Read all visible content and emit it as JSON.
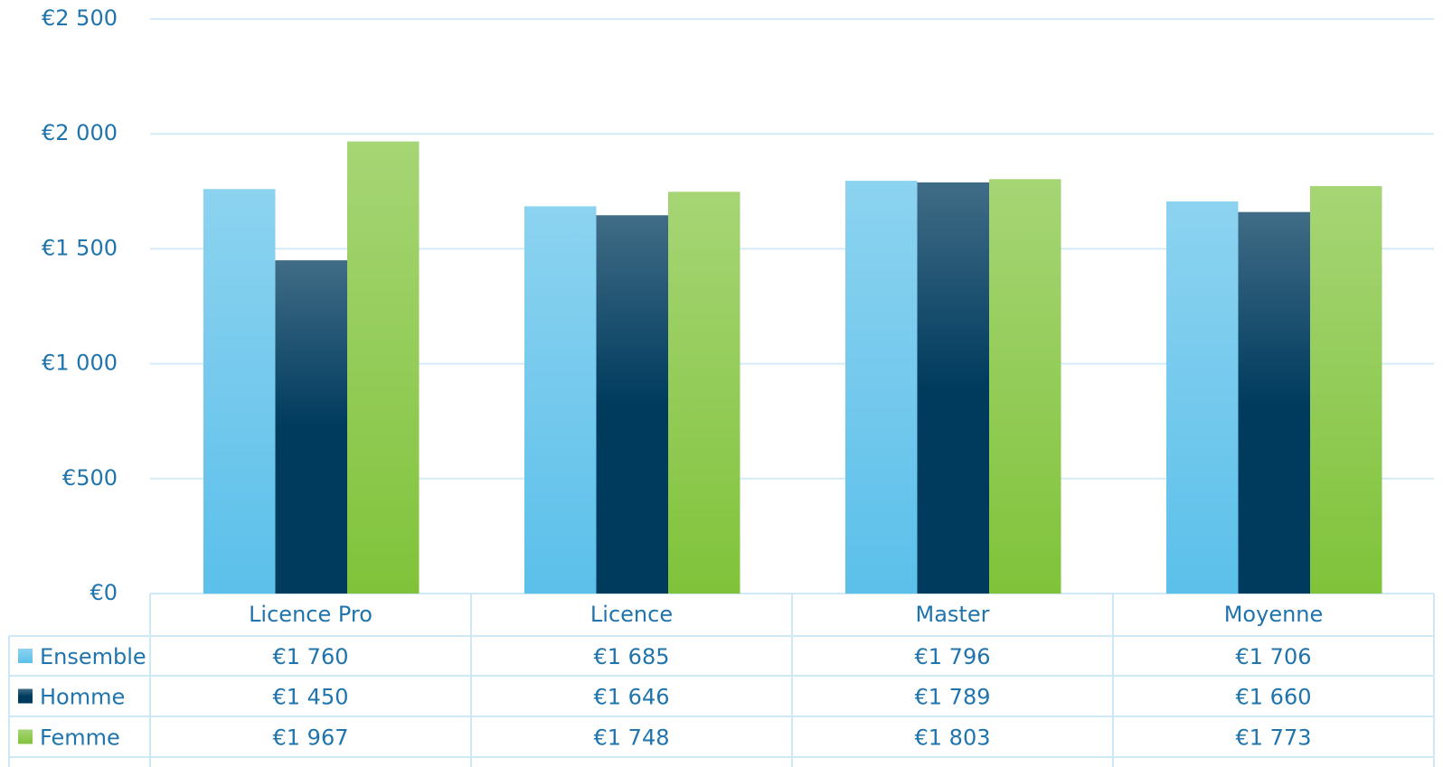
{
  "chart_data": {
    "type": "bar",
    "categories": [
      "Licence Pro",
      "Licence",
      "Master",
      "Moyenne"
    ],
    "series": [
      {
        "name": "Ensemble",
        "color": "#5bc0ea",
        "values": [
          1760,
          1685,
          1796,
          1706
        ],
        "value_labels": [
          "€1 760",
          "€1 685",
          "€1 796",
          "€1 706"
        ]
      },
      {
        "name": "Homme",
        "color": "#003b5e",
        "values": [
          1450,
          1646,
          1789,
          1660
        ],
        "value_labels": [
          "€1 450",
          "€1 646",
          "€1 789",
          "€1 660"
        ]
      },
      {
        "name": "Femme",
        "color": "#80c33a",
        "values": [
          1967,
          1748,
          1803,
          1773
        ],
        "value_labels": [
          "€1 967",
          "€1 748",
          "€1 803",
          "€1 773"
        ]
      }
    ],
    "ylim": [
      0,
      2500
    ],
    "yticks": [
      {
        "value": 0,
        "label": "€0"
      },
      {
        "value": 500,
        "label": "€500"
      },
      {
        "value": 1000,
        "label": "€1 000"
      },
      {
        "value": 1500,
        "label": "€1 500"
      },
      {
        "value": 2000,
        "label": "€2 000"
      },
      {
        "value": 2500,
        "label": "€2 500"
      }
    ],
    "grid": true
  }
}
